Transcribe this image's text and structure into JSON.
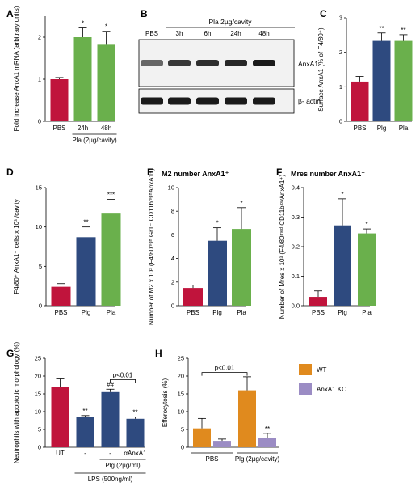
{
  "colors": {
    "red": "#c0143c",
    "blue": "#2e4a7f",
    "green": "#6ab04c",
    "orange": "#e08a1e",
    "purple": "#9b8cc4",
    "text": "#000000"
  },
  "chart_data": [
    {
      "id": "A",
      "panel_label": "A",
      "type": "bar",
      "title": "",
      "ylabel": "Fold increase AnxA1 mRNA (arbitrary units)",
      "ylim": [
        0,
        2.5
      ],
      "yticks": [
        0,
        1,
        2
      ],
      "categories": [
        "PBS",
        "24h",
        "48h"
      ],
      "values": [
        1.0,
        2.0,
        1.82
      ],
      "errors": [
        0.04,
        0.22,
        0.32
      ],
      "colors": [
        "red",
        "green",
        "green"
      ],
      "stars": [
        "",
        "*",
        "*"
      ],
      "group_labels": [
        {
          "text": "Pla (2µg/cavity)",
          "from": 1,
          "to": 2,
          "level": 1
        }
      ]
    },
    {
      "id": "C",
      "panel_label": "C",
      "type": "bar",
      "title": "",
      "ylabel": "Surface AnxA1 (% of F4/80⁺)",
      "ylim": [
        0,
        3
      ],
      "yticks": [
        0,
        1,
        2,
        3
      ],
      "categories": [
        "PBS",
        "Plg",
        "Pla"
      ],
      "values": [
        1.15,
        2.33,
        2.33
      ],
      "errors": [
        0.15,
        0.23,
        0.18
      ],
      "colors": [
        "red",
        "blue",
        "green"
      ],
      "stars": [
        "",
        "**",
        "**"
      ],
      "group_labels": []
    },
    {
      "id": "D",
      "panel_label": "D",
      "type": "bar",
      "title": "",
      "ylabel": "F4/80⁺ AnxA1⁺ cells x 10³ /cavity",
      "ylim": [
        0,
        15
      ],
      "yticks": [
        0,
        5,
        10,
        15
      ],
      "categories": [
        "PBS",
        "Plg",
        "Pla"
      ],
      "values": [
        2.4,
        8.7,
        11.8
      ],
      "errors": [
        0.4,
        1.3,
        1.7
      ],
      "colors": [
        "red",
        "blue",
        "green"
      ],
      "stars": [
        "",
        "**",
        "***"
      ],
      "group_labels": []
    },
    {
      "id": "E",
      "panel_label": "E",
      "type": "bar",
      "title": "M2 number AnxA1⁺",
      "ylabel": "Number of M2 x 10³ (F4/80ʰⁱᵍʰ Gr1⁻ CD11bʰⁱᵍʰAnxA1⁺)",
      "ylim": [
        0,
        10
      ],
      "yticks": [
        0,
        2,
        4,
        6,
        8,
        10
      ],
      "categories": [
        "PBS",
        "Plg",
        "Pla"
      ],
      "values": [
        1.5,
        5.5,
        6.5
      ],
      "errors": [
        0.25,
        1.1,
        1.8
      ],
      "colors": [
        "red",
        "blue",
        "green"
      ],
      "stars": [
        "",
        "*",
        "*"
      ],
      "group_labels": []
    },
    {
      "id": "F",
      "panel_label": "F",
      "type": "bar",
      "title": "Mres number AnxA1⁺",
      "ylabel": "Number of Mres x 10³ (F4/80ᵐᵉᵈ CD11bˡᵒʷAnxA1⁺)",
      "ylim": [
        0,
        0.4
      ],
      "yticks": [
        0.0,
        0.1,
        0.2,
        0.3,
        0.4
      ],
      "categories": [
        "PBS",
        "Plg",
        "Pla"
      ],
      "values": [
        0.03,
        0.272,
        0.245
      ],
      "errors": [
        0.02,
        0.09,
        0.015
      ],
      "colors": [
        "red",
        "blue",
        "green"
      ],
      "stars": [
        "",
        "*",
        "*"
      ],
      "group_labels": []
    },
    {
      "id": "G",
      "panel_label": "G",
      "type": "bar",
      "title": "",
      "ylabel": "Neutrophils with apoptotic morphology (%)",
      "ylim": [
        0,
        25
      ],
      "yticks": [
        0,
        5,
        10,
        15,
        20,
        25
      ],
      "categories": [
        "UT",
        "-",
        "-",
        "αAnxA1"
      ],
      "values": [
        17.0,
        8.6,
        15.5,
        8.0
      ],
      "errors": [
        2.2,
        0.3,
        0.8,
        0.5
      ],
      "colors": [
        "red",
        "blue",
        "blue",
        "blue"
      ],
      "stars": [
        "",
        "**",
        "##",
        "**"
      ],
      "bracket": {
        "from": 2,
        "to": 3,
        "text": "p<0.01",
        "value": 19.0
      },
      "group_labels": [
        {
          "text": "Plg (2µg/ml)",
          "from": 2,
          "to": 3,
          "level": 1
        },
        {
          "text": "LPS (500ng/ml)",
          "from": 1,
          "to": 3,
          "level": 2
        }
      ]
    },
    {
      "id": "H",
      "panel_label": "H",
      "type": "bar",
      "title": "",
      "ylabel": "Efferocytosis (%)",
      "ylim": [
        0,
        25
      ],
      "yticks": [
        0,
        5,
        10,
        15,
        20,
        25
      ],
      "groups": [
        "PBS",
        "Plg (2µg/cavity)"
      ],
      "series": [
        {
          "name": "WT",
          "color": "orange",
          "values": [
            5.3,
            16.0
          ],
          "errors": [
            2.8,
            3.8
          ],
          "stars": [
            "",
            ""
          ]
        },
        {
          "name": "AnxA1 KO",
          "color": "purple",
          "values": [
            1.8,
            2.7
          ],
          "errors": [
            0.5,
            1.2
          ],
          "stars": [
            "",
            "**"
          ]
        }
      ],
      "bracket": {
        "text": "p<0.01",
        "value": 21.0
      }
    }
  ],
  "blot": {
    "panel_label": "B",
    "treatment_label": "Pla 2µg/cavity",
    "lanes": [
      "PBS",
      "3h",
      "6h",
      "24h",
      "48h"
    ],
    "bands": [
      {
        "label": "AnxA1",
        "intensity": [
          0.55,
          0.8,
          0.85,
          0.88,
          0.95
        ]
      },
      {
        "label": "β- actin",
        "intensity": [
          0.95,
          0.95,
          0.95,
          0.95,
          0.95
        ]
      }
    ]
  }
}
